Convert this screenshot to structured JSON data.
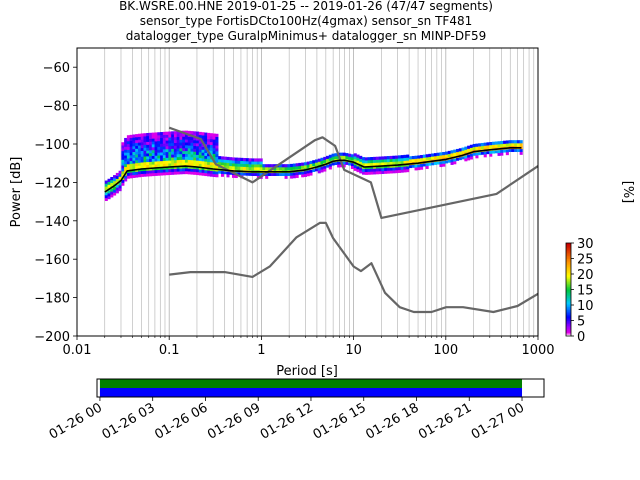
{
  "title": {
    "line1": "BK.WSRE.00.HNE   2019-01-25 -- 2019-01-26  (47/47 segments)",
    "line2": "sensor_type FortisDCto100Hz(4gmax) sensor_sn TF481",
    "line3": "datalogger_type GuralpMinimus+ datalogger_sn MINP-DF59"
  },
  "chart_data": [
    {
      "type": "heatmap",
      "subtype": "probabilistic power spectral density",
      "xlabel": "Period [s]",
      "ylabel": "Power [dB]",
      "xscale": "log",
      "xlim": [
        0.01,
        1000
      ],
      "ylim": [
        -200,
        -50
      ],
      "x_tick_labels": [
        "0.01",
        "0.1",
        "1",
        "10",
        "100",
        "1000"
      ],
      "x_tick_values": [
        0.01,
        0.1,
        1,
        10,
        100,
        1000
      ],
      "y_tick_values": [
        -200,
        -180,
        -160,
        -140,
        -120,
        -100,
        -80,
        -60
      ],
      "y_tick_labels": [
        "−200",
        "−180",
        "−160",
        "−140",
        "−120",
        "−100",
        "−80",
        "−60"
      ],
      "grid": "x-major-and-minor",
      "series": [
        {
          "kind": "noise-model",
          "x": [
            0.1,
            0.17,
            0.4,
            0.8,
            1.24,
            2.4,
            4.3,
            5.0,
            6.0,
            10.0,
            12.0,
            15.6,
            21.9,
            31.6,
            45.0,
            70.0,
            101.0,
            154.0,
            328.0,
            600.0,
            1000.0
          ],
          "y": [
            -168,
            -166.7,
            -166.7,
            -169.2,
            -163.7,
            -148.6,
            -141.1,
            -141.1,
            -149.0,
            -163.8,
            -166.2,
            -162.1,
            -177.5,
            -185.0,
            -187.5,
            -187.5,
            -185.0,
            -185.0,
            -187.5,
            -184.4,
            -178.0
          ]
        },
        {
          "kind": "noise-model",
          "x": [
            0.1,
            0.22,
            0.32,
            0.8,
            3.8,
            4.6,
            6.3,
            7.9,
            15.4,
            20.0,
            354.8,
            1000.0
          ],
          "y": [
            -91.5,
            -97.4,
            -110.5,
            -120.0,
            -98.0,
            -96.5,
            -101.0,
            -113.5,
            -120.0,
            -138.5,
            -126.0,
            -111.5
          ]
        },
        {
          "kind": "mode",
          "x": [
            0.02,
            0.025,
            0.03,
            0.035,
            0.05,
            0.07,
            0.1,
            0.15,
            0.2,
            0.3,
            0.5,
            0.8,
            1.0,
            2.0,
            3.0,
            4.0,
            5.0,
            6.0,
            7.0,
            8.0,
            10.0,
            13.0,
            20.0,
            30.0,
            50.0,
            70.0,
            100.0,
            150.0,
            200.0,
            300.0,
            500.0,
            660.0
          ],
          "y": [
            -125,
            -122,
            -119,
            -114,
            -113,
            -112.5,
            -112,
            -111.5,
            -112,
            -113,
            -114,
            -114.5,
            -114.5,
            -114.5,
            -113.5,
            -112,
            -110.5,
            -109,
            -108.5,
            -108.5,
            -109.5,
            -112,
            -111.5,
            -111,
            -110,
            -109,
            -108,
            -106,
            -104,
            -103,
            -102,
            -102
          ]
        }
      ]
    },
    {
      "type": "heatmap",
      "role": "colorbar",
      "label": "[%]",
      "range": [
        0,
        30
      ],
      "tick_values": [
        0,
        5,
        10,
        15,
        20,
        25,
        30
      ],
      "tick_labels": [
        "0",
        "5",
        "10",
        "15",
        "20",
        "25",
        "30"
      ]
    },
    {
      "type": "bar",
      "role": "data-coverage",
      "xlim": [
        "2019-01-25T23:50",
        "2019-01-27T01:15"
      ],
      "tick_labels": [
        "01-26 00",
        "01-26 03",
        "01-26 06",
        "01-26 09",
        "01-26 12",
        "01-26 15",
        "01-26 18",
        "01-26 21",
        "01-27 00"
      ],
      "tick_hours": [
        0,
        3,
        6,
        9,
        12,
        15,
        18,
        21,
        24
      ],
      "series": [
        {
          "kind": "used-data",
          "start_hour": 0,
          "end_hour": 24
        },
        {
          "kind": "available-data",
          "start_hour": 0,
          "end_hour": 24
        }
      ],
      "colors": {
        "used": "#008000",
        "available": "#0000ff"
      }
    }
  ],
  "colors": {
    "noise_model": "#666666",
    "mode": "#000000",
    "grid": "#b0b0b0"
  }
}
